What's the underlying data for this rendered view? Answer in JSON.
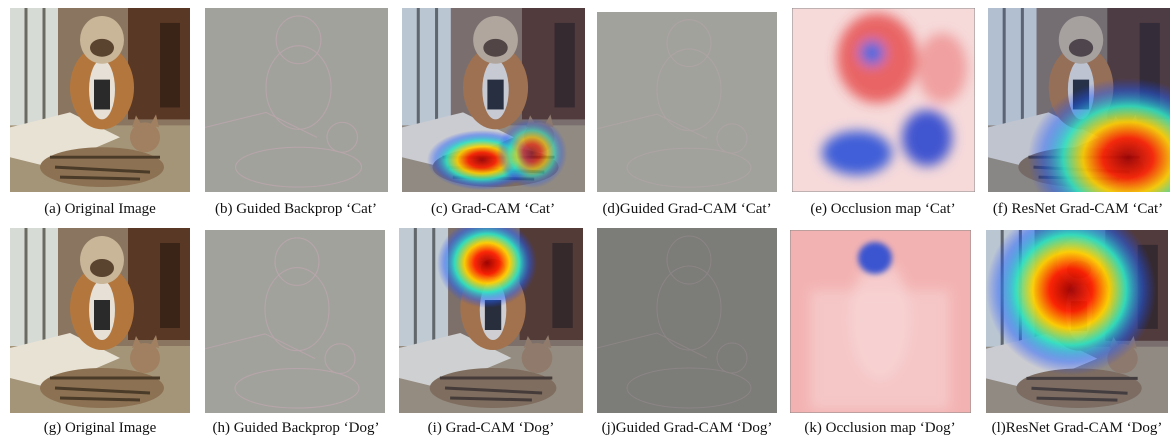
{
  "panels": [
    {
      "caption": "(a) Original Image"
    },
    {
      "caption": "(b) Guided Backprop ‘Cat’"
    },
    {
      "caption": "(c) Grad-CAM ‘Cat’"
    },
    {
      "caption": "(d)Guided Grad-CAM ‘Cat’"
    },
    {
      "caption": "(e) Occlusion map ‘Cat’"
    },
    {
      "caption": "(f) ResNet Grad-CAM ‘Cat’"
    },
    {
      "caption": "(g) Original Image"
    },
    {
      "caption": "(h) Guided Backprop ‘Dog’"
    },
    {
      "caption": "(i) Grad-CAM ‘Dog’"
    },
    {
      "caption": "(j)Guided Grad-CAM ‘Dog’"
    },
    {
      "caption": "(k) Occlusion map ‘Dog’"
    },
    {
      "caption": "(l)ResNet Grad-CAM ‘Dog’"
    }
  ]
}
